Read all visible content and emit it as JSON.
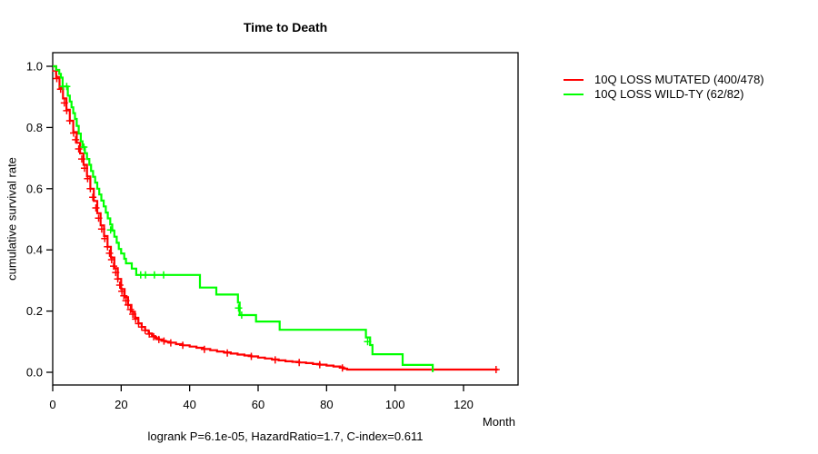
{
  "chart_data": {
    "type": "line",
    "chart_style": "kaplan-meier-step",
    "title": "Time to Death",
    "caption": "logrank P=6.1e-05, HazardRatio=1.7, C-index=0.611",
    "stats": {
      "logrank_p": "6.1e-05",
      "hazard_ratio": "1.7",
      "c_index": "0.611"
    },
    "grid": false,
    "legend_position": "right-of-plot",
    "x_axis": {
      "label": "Month",
      "ticks": [
        0,
        20,
        40,
        60,
        80,
        100,
        120
      ],
      "range": [
        0,
        136
      ]
    },
    "y_axis": {
      "label": "cumulative survival rate",
      "ticks": [
        "0.0",
        "0.2",
        "0.4",
        "0.6",
        "0.8",
        "1.0"
      ],
      "range": [
        0.0,
        1.0
      ]
    },
    "series": [
      {
        "id": "mutated",
        "name": "10Q LOSS MUTATED (400/478)",
        "color": "#ff0000",
        "events": 400,
        "total": 478,
        "steps": [
          [
            0,
            1.0
          ],
          [
            1,
            0.965
          ],
          [
            2,
            0.93
          ],
          [
            3,
            0.895
          ],
          [
            4,
            0.858
          ],
          [
            5,
            0.822
          ],
          [
            6,
            0.785
          ],
          [
            7,
            0.75
          ],
          [
            8,
            0.715
          ],
          [
            9,
            0.678
          ],
          [
            10,
            0.64
          ],
          [
            11,
            0.6
          ],
          [
            12,
            0.56
          ],
          [
            13,
            0.52
          ],
          [
            14,
            0.48
          ],
          [
            15,
            0.445
          ],
          [
            16,
            0.41
          ],
          [
            17,
            0.375
          ],
          [
            18,
            0.34
          ],
          [
            19,
            0.305
          ],
          [
            20,
            0.272
          ],
          [
            21,
            0.245
          ],
          [
            22,
            0.22
          ],
          [
            23,
            0.198
          ],
          [
            24,
            0.178
          ],
          [
            25,
            0.16
          ],
          [
            26,
            0.148
          ],
          [
            27,
            0.137
          ],
          [
            28,
            0.127
          ],
          [
            29,
            0.118
          ],
          [
            30,
            0.112
          ],
          [
            31,
            0.107
          ],
          [
            32,
            0.103
          ],
          [
            33,
            0.1
          ],
          [
            34,
            0.097
          ],
          [
            36,
            0.092
          ],
          [
            38,
            0.088
          ],
          [
            40,
            0.084
          ],
          [
            42,
            0.08
          ],
          [
            44,
            0.076
          ],
          [
            46,
            0.072
          ],
          [
            48,
            0.068
          ],
          [
            50,
            0.065
          ],
          [
            52,
            0.061
          ],
          [
            54,
            0.058
          ],
          [
            56,
            0.055
          ],
          [
            58,
            0.052
          ],
          [
            60,
            0.048
          ],
          [
            62,
            0.045
          ],
          [
            64,
            0.042
          ],
          [
            66,
            0.039
          ],
          [
            68,
            0.036
          ],
          [
            70,
            0.034
          ],
          [
            72,
            0.032
          ],
          [
            74,
            0.03
          ],
          [
            76,
            0.027
          ],
          [
            78,
            0.025
          ],
          [
            80,
            0.022
          ],
          [
            82,
            0.019
          ],
          [
            84,
            0.016
          ],
          [
            85,
            0.012
          ],
          [
            86,
            0.009
          ],
          [
            130,
            0.009
          ]
        ],
        "censors": [
          [
            0.9,
            0.985
          ],
          [
            1.2,
            0.96
          ],
          [
            2.3,
            0.925
          ],
          [
            3.4,
            0.88
          ],
          [
            4.1,
            0.855
          ],
          [
            5.0,
            0.822
          ],
          [
            6.1,
            0.782
          ],
          [
            6.7,
            0.76
          ],
          [
            7.6,
            0.73
          ],
          [
            8.5,
            0.697
          ],
          [
            9.3,
            0.667
          ],
          [
            10.2,
            0.633
          ],
          [
            11.0,
            0.6
          ],
          [
            11.7,
            0.572
          ],
          [
            12.6,
            0.537
          ],
          [
            13.4,
            0.504
          ],
          [
            14.3,
            0.468
          ],
          [
            15.2,
            0.437
          ],
          [
            16.0,
            0.41
          ],
          [
            16.6,
            0.389
          ],
          [
            17.2,
            0.368
          ],
          [
            17.8,
            0.347
          ],
          [
            18.4,
            0.326
          ],
          [
            19.0,
            0.305
          ],
          [
            19.6,
            0.285
          ],
          [
            20.2,
            0.265
          ],
          [
            20.8,
            0.25
          ],
          [
            21.4,
            0.234
          ],
          [
            22.0,
            0.22
          ],
          [
            22.7,
            0.205
          ],
          [
            23.4,
            0.19
          ],
          [
            24.2,
            0.174
          ],
          [
            25.1,
            0.159
          ],
          [
            26.0,
            0.148
          ],
          [
            27.0,
            0.137
          ],
          [
            28.2,
            0.125
          ],
          [
            29.5,
            0.116
          ],
          [
            31.0,
            0.107
          ],
          [
            32.5,
            0.102
          ],
          [
            34.5,
            0.096
          ],
          [
            38.0,
            0.088
          ],
          [
            44.3,
            0.075
          ],
          [
            51.0,
            0.063
          ],
          [
            58.0,
            0.052
          ],
          [
            65.0,
            0.0405
          ],
          [
            72.0,
            0.032
          ],
          [
            78.0,
            0.025
          ],
          [
            84.6,
            0.014
          ],
          [
            129.5,
            0.009
          ]
        ]
      },
      {
        "id": "wildtype",
        "name": "10Q LOSS WILD-TY (62/82)",
        "color": "#00ff00",
        "events": 62,
        "total": 82,
        "steps": [
          [
            0,
            1.0
          ],
          [
            1,
            0.988
          ],
          [
            1.9,
            0.975
          ],
          [
            2.4,
            0.963
          ],
          [
            2.9,
            0.934
          ],
          [
            4.4,
            0.904
          ],
          [
            5,
            0.885
          ],
          [
            5.5,
            0.866
          ],
          [
            6,
            0.847
          ],
          [
            6.5,
            0.828
          ],
          [
            7,
            0.805
          ],
          [
            7.6,
            0.78
          ],
          [
            8.2,
            0.755
          ],
          [
            8.7,
            0.736
          ],
          [
            9.4,
            0.716
          ],
          [
            10,
            0.697
          ],
          [
            10.7,
            0.678
          ],
          [
            11.2,
            0.658
          ],
          [
            11.8,
            0.639
          ],
          [
            12.4,
            0.62
          ],
          [
            13,
            0.6
          ],
          [
            13.6,
            0.581
          ],
          [
            14.2,
            0.561
          ],
          [
            14.9,
            0.542
          ],
          [
            15.5,
            0.522
          ],
          [
            16.1,
            0.503
          ],
          [
            16.8,
            0.483
          ],
          [
            17.4,
            0.463
          ],
          [
            18,
            0.443
          ],
          [
            18.7,
            0.423
          ],
          [
            19.3,
            0.403
          ],
          [
            20,
            0.388
          ],
          [
            20.9,
            0.371
          ],
          [
            21.4,
            0.356
          ],
          [
            23.1,
            0.339
          ],
          [
            24.4,
            0.318
          ],
          [
            43,
            0.277
          ],
          [
            47.8,
            0.254
          ],
          [
            54.1,
            0.228
          ],
          [
            54.6,
            0.187
          ],
          [
            59.4,
            0.166
          ],
          [
            66.3,
            0.139
          ],
          [
            91.5,
            0.114
          ],
          [
            92.7,
            0.089
          ],
          [
            93.4,
            0.059
          ],
          [
            102.2,
            0.024
          ],
          [
            111,
            0.001
          ]
        ],
        "censors": [
          [
            3.0,
            0.934
          ],
          [
            4.1,
            0.934
          ],
          [
            9.1,
            0.736
          ],
          [
            16.9,
            0.465
          ],
          [
            25.7,
            0.318
          ],
          [
            27.1,
            0.318
          ],
          [
            29.7,
            0.318
          ],
          [
            32.4,
            0.318
          ],
          [
            54.3,
            0.21
          ],
          [
            55.2,
            0.187
          ],
          [
            92.0,
            0.1
          ]
        ]
      }
    ]
  }
}
